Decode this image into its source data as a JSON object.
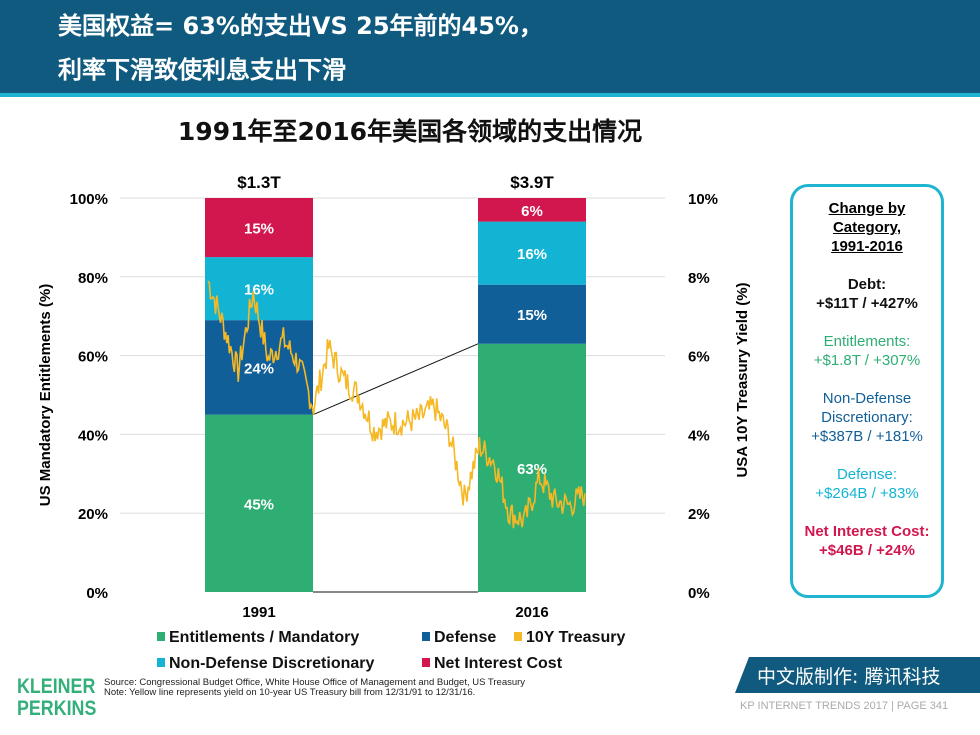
{
  "header": {
    "line1": "美国权益= 63%的支出VS 25年前的45%，",
    "line2": "利率下滑致使利息支出下滑"
  },
  "chart_data": {
    "type": "bar",
    "title": "1991年至2016年美国各领域的支出情况",
    "categories": [
      "1991",
      "2016"
    ],
    "totals": [
      "$1.3T",
      "$3.9T"
    ],
    "ylabel": "US Mandatory Entitlements (%)",
    "y2label": "USA 10Y Treasury Yield (%)",
    "ylim": [
      0,
      100
    ],
    "y2lim": [
      0,
      10
    ],
    "yticks": [
      "0%",
      "20%",
      "40%",
      "60%",
      "80%",
      "100%"
    ],
    "y2ticks": [
      "0%",
      "2%",
      "4%",
      "6%",
      "8%",
      "10%"
    ],
    "series": [
      {
        "name": "Entitlements / Mandatory",
        "color": "#2fae74",
        "values": [
          45,
          63
        ]
      },
      {
        "name": "Defense",
        "color": "#115f98",
        "values": [
          24,
          15
        ]
      },
      {
        "name": "Non-Defense Discretionary",
        "color": "#13b4d3",
        "values": [
          16,
          16
        ]
      },
      {
        "name": "Net Interest Cost",
        "color": "#d2174f",
        "values": [
          15,
          6
        ]
      }
    ],
    "line": {
      "name": "10Y Treasury",
      "color": "#f6b824",
      "x": [
        1991,
        1992,
        1993,
        1994,
        1995,
        1996,
        1997,
        1998,
        1999,
        2000,
        2001,
        2002,
        2003,
        2004,
        2005,
        2006,
        2007,
        2008,
        2009,
        2010,
        2011,
        2012,
        2013,
        2014,
        2015,
        2016
      ],
      "y": [
        7.9,
        6.8,
        5.6,
        7.6,
        5.9,
        6.4,
        5.8,
        4.7,
        6.2,
        5.4,
        5.0,
        4.1,
        4.3,
        4.3,
        4.4,
        4.7,
        4.0,
        2.4,
        3.7,
        3.3,
        2.0,
        1.8,
        2.9,
        2.3,
        2.2,
        2.5
      ]
    },
    "legend": "bottom"
  },
  "box": {
    "heading": "Change by Category, 1991-2016",
    "items": [
      {
        "label": "Debt:",
        "value": "+$11T / +427%",
        "color": "#111"
      },
      {
        "label": "Entitlements:",
        "value": "+$1.8T / +307%",
        "color": "#2fae74"
      },
      {
        "label": "Non-Defense Discretionary:",
        "value": "+$387B / +181%",
        "color": "#115f98"
      },
      {
        "label": "Defense:",
        "value": "+$264B / +83%",
        "color": "#13b4d3"
      },
      {
        "label": "Net Interest Cost:",
        "value": "+$46B / +24%",
        "color": "#d2174f"
      }
    ]
  },
  "footer": {
    "logo": "KLEINER PERKINS",
    "source": "Source: Congressional Budget Office, White House Office of Management and Budget, US Treasury",
    "note": "Note: Yellow line represents yield on 10-year US Treasury bill from 12/31/91 to 12/31/16.",
    "cn_badge": "中文版制作: 腾讯科技",
    "page": "KP INTERNET TRENDS 2017  |  PAGE 341"
  }
}
